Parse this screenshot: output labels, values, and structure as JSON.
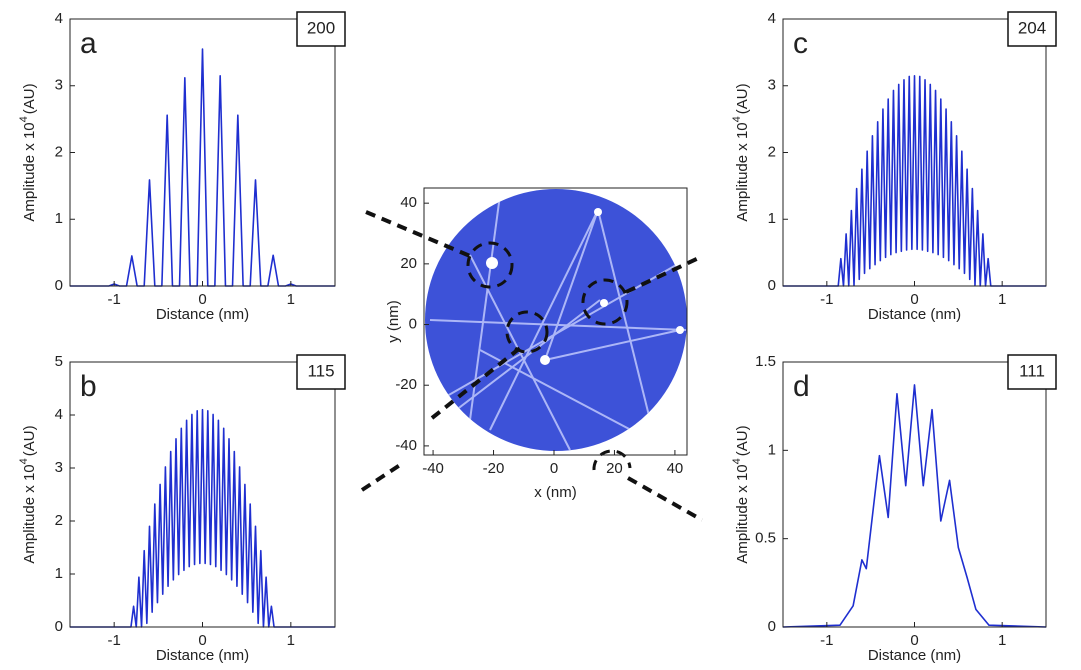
{
  "chart_data": [
    {
      "type": "line",
      "label": "a",
      "annotation": "200",
      "xlabel": "Distance (nm)",
      "ylabel": {
        "text": "Amplitude x 10",
        "superscript": "4",
        "unit": "(AU)"
      },
      "xlim": [
        -1.5,
        1.5
      ],
      "ylim": [
        0,
        4
      ],
      "xticks": [
        -1,
        0,
        1
      ],
      "yticks": [
        0,
        1,
        2,
        3,
        4
      ],
      "color": "#1f2fd0",
      "x": [
        -1.5,
        -1.06,
        -1.0,
        -0.94,
        -0.86,
        -0.8,
        -0.74,
        -0.66,
        -0.6,
        -0.54,
        -0.46,
        -0.4,
        -0.34,
        -0.26,
        -0.2,
        -0.14,
        -0.06,
        0,
        0.06,
        0.14,
        0.2,
        0.26,
        0.34,
        0.4,
        0.46,
        0.54,
        0.6,
        0.66,
        0.74,
        0.8,
        0.86,
        0.94,
        1.0,
        1.06,
        1.5
      ],
      "values": [
        0,
        0,
        0.03,
        0,
        0,
        0.45,
        0,
        0,
        1.59,
        0,
        0,
        2.56,
        0,
        0,
        3.12,
        0,
        0,
        3.55,
        0,
        0,
        3.15,
        0,
        0,
        2.56,
        0,
        0,
        1.59,
        0,
        0,
        0.46,
        0,
        0,
        0.03,
        0,
        0
      ]
    },
    {
      "type": "line",
      "label": "b",
      "annotation": "115",
      "xlabel": "Distance (nm)",
      "ylabel": {
        "text": "Amplitude x 10",
        "superscript": "4",
        "unit": "(AU)"
      },
      "xlim": [
        -1.5,
        1.5
      ],
      "ylim": [
        0,
        5
      ],
      "xticks": [
        -1,
        0,
        1
      ],
      "yticks": [
        0,
        1,
        2,
        3,
        4,
        5
      ],
      "color": "#1f2fd0",
      "x": [
        -1.5,
        -0.81,
        -0.78,
        -0.75,
        -0.72,
        -0.69,
        -0.66,
        -0.63,
        -0.6,
        -0.57,
        -0.54,
        -0.51,
        -0.48,
        -0.45,
        -0.42,
        -0.39,
        -0.36,
        -0.33,
        -0.3,
        -0.27,
        -0.24,
        -0.21,
        -0.18,
        -0.15,
        -0.12,
        -0.09,
        -0.06,
        -0.03,
        0,
        0.03,
        0.06,
        0.09,
        0.12,
        0.15,
        0.18,
        0.21,
        0.24,
        0.27,
        0.3,
        0.33,
        0.36,
        0.39,
        0.42,
        0.45,
        0.48,
        0.51,
        0.54,
        0.57,
        0.6,
        0.63,
        0.66,
        0.69,
        0.72,
        0.75,
        0.78,
        0.81,
        1.5
      ],
      "values": [
        0,
        0,
        0.39,
        0,
        0.94,
        0,
        1.44,
        0.07,
        1.9,
        0.28,
        2.32,
        0.46,
        2.69,
        0.62,
        3.02,
        0.77,
        3.31,
        0.89,
        3.55,
        0.99,
        3.75,
        1.07,
        3.9,
        1.14,
        4.01,
        1.18,
        4.08,
        1.2,
        4.1,
        1.2,
        4.08,
        1.18,
        4.01,
        1.14,
        3.9,
        1.07,
        3.75,
        0.99,
        3.55,
        0.89,
        3.31,
        0.77,
        3.02,
        0.62,
        2.69,
        0.46,
        2.32,
        0.28,
        1.9,
        0.07,
        1.44,
        0,
        0.94,
        0,
        0.39,
        0,
        0
      ]
    },
    {
      "type": "line",
      "label": "c",
      "annotation": "204",
      "xlabel": "Distance (nm)",
      "ylabel": {
        "text": "Amplitude x 10",
        "superscript": "4",
        "unit": "(AU)"
      },
      "xlim": [
        -1.5,
        1.5
      ],
      "ylim": [
        0,
        4
      ],
      "xticks": [
        -1,
        0,
        1
      ],
      "yticks": [
        0,
        1,
        2,
        3,
        4
      ],
      "color": "#1f2fd0",
      "x": [
        -1.5,
        -0.87,
        -0.84,
        -0.81,
        -0.78,
        -0.75,
        -0.72,
        -0.69,
        -0.66,
        -0.63,
        -0.6,
        -0.57,
        -0.54,
        -0.51,
        -0.48,
        -0.45,
        -0.42,
        -0.39,
        -0.36,
        -0.33,
        -0.3,
        -0.27,
        -0.24,
        -0.21,
        -0.18,
        -0.15,
        -0.12,
        -0.09,
        -0.06,
        -0.03,
        0,
        0.03,
        0.06,
        0.09,
        0.12,
        0.15,
        0.18,
        0.21,
        0.24,
        0.27,
        0.3,
        0.33,
        0.36,
        0.39,
        0.42,
        0.45,
        0.48,
        0.51,
        0.54,
        0.57,
        0.6,
        0.63,
        0.66,
        0.69,
        0.72,
        0.75,
        0.78,
        0.81,
        0.84,
        0.87,
        1.5
      ],
      "values": [
        0,
        0,
        0.41,
        0,
        0.78,
        0,
        1.13,
        0.01,
        1.46,
        0.1,
        1.75,
        0.19,
        2.02,
        0.26,
        2.25,
        0.32,
        2.46,
        0.38,
        2.65,
        0.43,
        2.8,
        0.47,
        2.93,
        0.5,
        3.02,
        0.52,
        3.09,
        0.54,
        3.14,
        0.55,
        3.15,
        0.55,
        3.14,
        0.54,
        3.09,
        0.52,
        3.02,
        0.5,
        2.93,
        0.47,
        2.8,
        0.43,
        2.65,
        0.38,
        2.46,
        0.32,
        2.25,
        0.26,
        2.02,
        0.19,
        1.75,
        0.1,
        1.46,
        0.01,
        1.13,
        0,
        0.78,
        0,
        0.41,
        0,
        0
      ]
    },
    {
      "type": "line",
      "label": "d",
      "annotation": "111",
      "xlabel": "Distance (nm)",
      "ylabel": {
        "text": "Amplitude x 10",
        "superscript": "4",
        "unit": "(AU)"
      },
      "xlim": [
        -1.5,
        1.5
      ],
      "ylim": [
        0,
        1.5
      ],
      "xticks": [
        -1,
        0,
        1
      ],
      "yticks": [
        0,
        0.5,
        1,
        1.5
      ],
      "color": "#1f2fd0",
      "x": [
        -1.5,
        -0.85,
        -0.7,
        -0.6,
        -0.55,
        -0.4,
        -0.3,
        -0.2,
        -0.1,
        0,
        0.1,
        0.2,
        0.3,
        0.4,
        0.5,
        0.6,
        0.7,
        0.85,
        1.5
      ],
      "values": [
        0,
        0.01,
        0.12,
        0.38,
        0.33,
        0.97,
        0.62,
        1.32,
        0.8,
        1.37,
        0.8,
        1.23,
        0.6,
        0.83,
        0.45,
        0.28,
        0.1,
        0.01,
        0
      ]
    },
    {
      "type": "image",
      "xlabel": "x (nm)",
      "ylabel": "y (nm)",
      "xlim": [
        -43,
        44
      ],
      "ylim": [
        -43,
        45
      ],
      "xticks": [
        -40,
        -20,
        0,
        20,
        40
      ],
      "yticks": [
        -40,
        -20,
        0,
        20,
        40
      ]
    }
  ]
}
